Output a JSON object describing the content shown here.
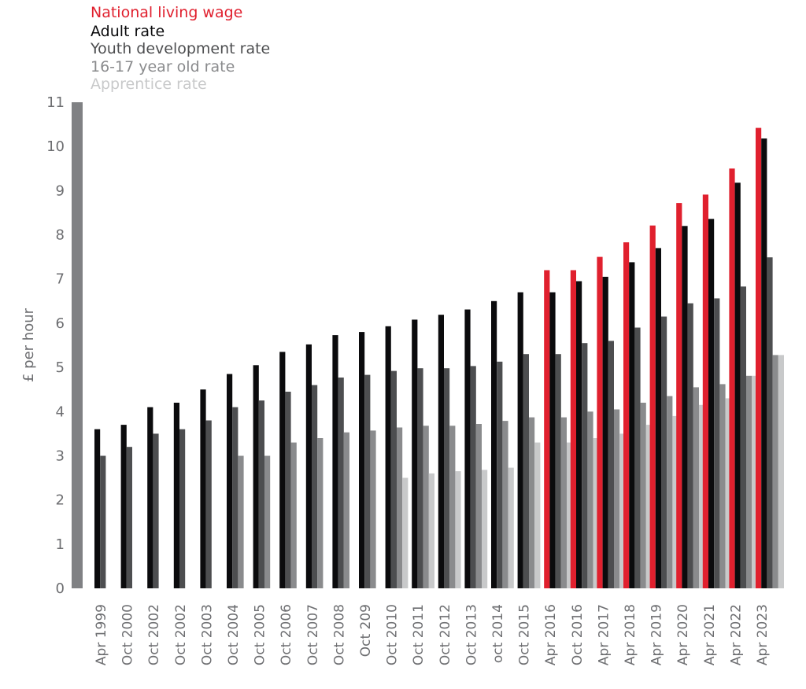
{
  "chart_data": {
    "type": "bar",
    "ylabel": "£ per hour",
    "xlabel": "",
    "ylim": [
      0,
      11
    ],
    "yticks": [
      0,
      1,
      2,
      3,
      4,
      5,
      6,
      7,
      8,
      9,
      10,
      11
    ],
    "grid": false,
    "legend_position": "top-left",
    "categories": [
      "Apr 1999",
      "Oct 2000",
      "Oct 2002",
      "Oct 2002",
      "Oct 2003",
      "Oct 2004",
      "Oct 2005",
      "Oct 2006",
      "Oct 2007",
      "Oct 2008",
      "Oct 209",
      "Oct 2010",
      "Oct 2011",
      "Oct 2012",
      "Oct 2013",
      "oct 2014",
      "Oct 2015",
      "Apr 2016",
      "Oct 2016",
      "Apr 2017",
      "Apr 2018",
      "Apr 2019",
      "Apr 2020",
      "Apr 2021",
      "Apr 2022",
      "Apr 2023"
    ],
    "series": [
      {
        "name": "National living wage",
        "color": "#e0202e",
        "values": [
          null,
          null,
          null,
          null,
          null,
          null,
          null,
          null,
          null,
          null,
          null,
          null,
          null,
          null,
          null,
          null,
          null,
          7.2,
          7.2,
          7.5,
          7.83,
          8.21,
          8.72,
          8.91,
          9.5,
          10.42
        ]
      },
      {
        "name": "Adult rate",
        "color": "#0b0b0d",
        "values": [
          3.6,
          3.7,
          4.1,
          4.2,
          4.5,
          4.85,
          5.05,
          5.35,
          5.52,
          5.73,
          5.8,
          5.93,
          6.08,
          6.19,
          6.31,
          6.5,
          6.7,
          6.7,
          6.95,
          7.05,
          7.38,
          7.7,
          8.2,
          8.36,
          9.18,
          10.18
        ]
      },
      {
        "name": "Youth development rate",
        "color": "#4d4e50",
        "values": [
          3.0,
          3.2,
          3.5,
          3.6,
          3.8,
          4.1,
          4.25,
          4.45,
          4.6,
          4.77,
          4.83,
          4.92,
          4.98,
          4.98,
          5.03,
          5.13,
          5.3,
          5.3,
          5.55,
          5.6,
          5.9,
          6.15,
          6.45,
          6.56,
          6.83,
          7.49
        ]
      },
      {
        "name": "16-17 year old rate",
        "color": "#8a8b8d",
        "values": [
          null,
          null,
          null,
          null,
          null,
          3.0,
          3.0,
          3.3,
          3.4,
          3.53,
          3.57,
          3.64,
          3.68,
          3.68,
          3.72,
          3.79,
          3.87,
          3.87,
          4.0,
          4.05,
          4.2,
          4.35,
          4.55,
          4.62,
          4.81,
          5.28
        ]
      },
      {
        "name": "Apprentice rate",
        "color": "#c8c9ca",
        "values": [
          null,
          null,
          null,
          null,
          null,
          null,
          null,
          null,
          null,
          null,
          null,
          2.5,
          2.6,
          2.65,
          2.68,
          2.73,
          3.3,
          3.3,
          3.4,
          3.5,
          3.7,
          3.9,
          4.15,
          4.3,
          4.81,
          5.28
        ]
      }
    ]
  }
}
